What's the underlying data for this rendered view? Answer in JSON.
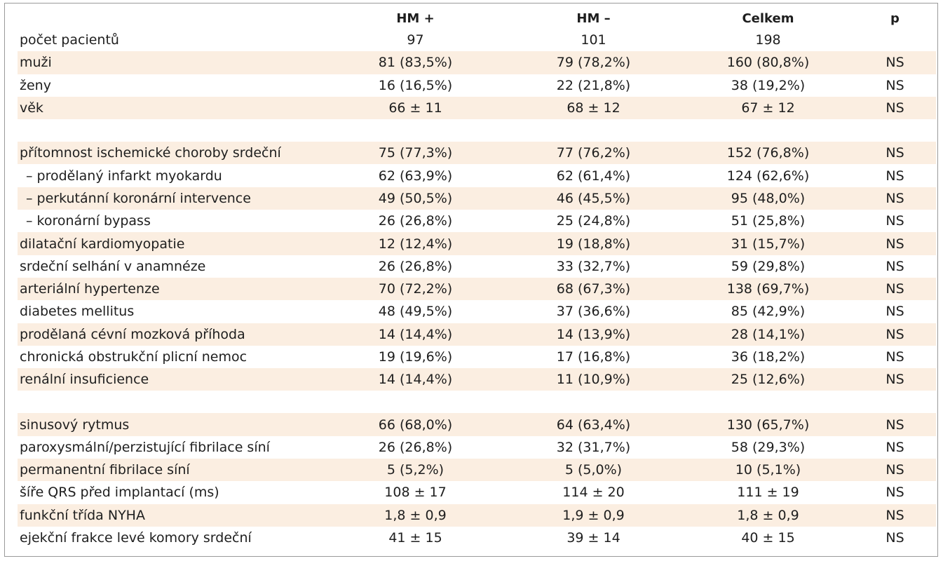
{
  "headers": [
    "",
    "HM +",
    "HM –",
    "Celkem",
    "p"
  ],
  "rows": [
    {
      "label": "počet pacientů",
      "hm_plus": "97",
      "hm_minus": "101",
      "total": "198",
      "p": "",
      "shaded": false,
      "sub": false
    },
    {
      "label": "muži",
      "hm_plus": "81 (83,5%)",
      "hm_minus": "79 (78,2%)",
      "total": "160 (80,8%)",
      "p": "NS",
      "shaded": true,
      "sub": false
    },
    {
      "label": "ženy",
      "hm_plus": "16 (16,5%)",
      "hm_minus": "22 (21,8%)",
      "total": "38 (19,2%)",
      "p": "NS",
      "shaded": false,
      "sub": false
    },
    {
      "label": "věk",
      "hm_plus": "66 ± 11",
      "hm_minus": "68 ± 12",
      "total": "67 ± 12",
      "p": "NS",
      "shaded": true,
      "sub": false
    },
    {
      "spacer": true
    },
    {
      "label": "přítomnost ischemické choroby srdeční",
      "hm_plus": "75 (77,3%)",
      "hm_minus": "77 (76,2%)",
      "total": "152 (76,8%)",
      "p": "NS",
      "shaded": true,
      "sub": false
    },
    {
      "label": "– prodělaný infarkt myokardu",
      "hm_plus": "62 (63,9%)",
      "hm_minus": "62 (61,4%)",
      "total": "124 (62,6%)",
      "p": "NS",
      "shaded": false,
      "sub": true
    },
    {
      "label": "– perkutánní koronární intervence",
      "hm_plus": "49 (50,5%)",
      "hm_minus": "46 (45,5%)",
      "total": "95 (48,0%)",
      "p": "NS",
      "shaded": true,
      "sub": true
    },
    {
      "label": "– koronární bypass",
      "hm_plus": "26 (26,8%)",
      "hm_minus": "25 (24,8%)",
      "total": "51 (25,8%)",
      "p": "NS",
      "shaded": false,
      "sub": true
    },
    {
      "label": "dilatační kardiomyopatie",
      "hm_plus": "12 (12,4%)",
      "hm_minus": "19 (18,8%)",
      "total": "31 (15,7%)",
      "p": "NS",
      "shaded": true,
      "sub": false
    },
    {
      "label": "srdeční selhání v anamnéze",
      "hm_plus": "26 (26,8%)",
      "hm_minus": "33 (32,7%)",
      "total": "59 (29,8%)",
      "p": "NS",
      "shaded": false,
      "sub": false
    },
    {
      "label": "arteriální hypertenze",
      "hm_plus": "70 (72,2%)",
      "hm_minus": "68 (67,3%)",
      "total": "138 (69,7%)",
      "p": "NS",
      "shaded": true,
      "sub": false
    },
    {
      "label": "diabetes mellitus",
      "hm_plus": "48 (49,5%)",
      "hm_minus": "37 (36,6%)",
      "total": "85 (42,9%)",
      "p": "NS",
      "shaded": false,
      "sub": false
    },
    {
      "label": "prodělaná cévní mozková příhoda",
      "hm_plus": "14 (14,4%)",
      "hm_minus": "14 (13,9%)",
      "total": "28 (14,1%)",
      "p": "NS",
      "shaded": true,
      "sub": false
    },
    {
      "label": "chronická obstrukční plicní nemoc",
      "hm_plus": "19 (19,6%)",
      "hm_minus": "17 (16,8%)",
      "total": "36 (18,2%)",
      "p": "NS",
      "shaded": false,
      "sub": false
    },
    {
      "label": "renální insuficience",
      "hm_plus": "14 (14,4%)",
      "hm_minus": "11 (10,9%)",
      "total": "25 (12,6%)",
      "p": "NS",
      "shaded": true,
      "sub": false
    },
    {
      "spacer": true
    },
    {
      "label": "sinusový rytmus",
      "hm_plus": "66 (68,0%)",
      "hm_minus": "64 (63,4%)",
      "total": "130 (65,7%)",
      "p": "NS",
      "shaded": true,
      "sub": false
    },
    {
      "label": "paroxysmální/perzistující fibrilace síní",
      "hm_plus": "26 (26,8%)",
      "hm_minus": "32 (31,7%)",
      "total": "58 (29,3%)",
      "p": "NS",
      "shaded": false,
      "sub": false
    },
    {
      "label": "permanentní fibrilace síní",
      "hm_plus": "5 (5,2%)",
      "hm_minus": "5 (5,0%)",
      "total": "10 (5,1%)",
      "p": "NS",
      "shaded": true,
      "sub": false
    },
    {
      "label": "šíře QRS před implantací (ms)",
      "hm_plus": "108 ± 17",
      "hm_minus": "114 ± 20",
      "total": "111 ± 19",
      "p": "NS",
      "shaded": false,
      "sub": false
    },
    {
      "label": "funkční třída NYHA",
      "hm_plus": "1,8 ± 0,9",
      "hm_minus": "1,9 ± 0,9",
      "total": "1,8 ± 0,9",
      "p": "NS",
      "shaded": true,
      "sub": false
    },
    {
      "label": "ejekční frakce levé komory srdeční",
      "hm_plus": "41 ± 15",
      "hm_minus": "39 ± 14",
      "total": "40 ± 15",
      "p": "NS",
      "shaded": false,
      "sub": false
    }
  ]
}
